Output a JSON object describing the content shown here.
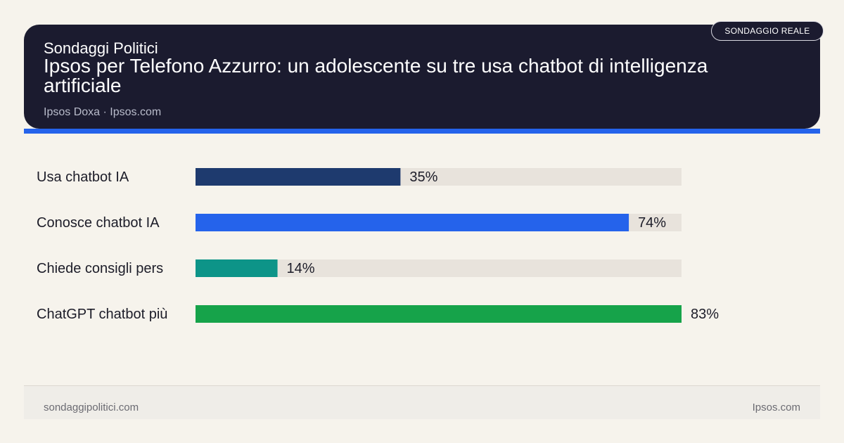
{
  "header": {
    "brand": "Sondaggi Politici",
    "title": "Ipsos per Telefono Azzurro: un adolescente su tre usa chatbot di intelligenza artificiale",
    "source": "Ipsos Doxa · Ipsos.com",
    "badge": "SONDAGGIO REALE"
  },
  "chart_data": {
    "type": "bar",
    "orientation": "horizontal",
    "categories": [
      "Usa chatbot IA",
      "Conosce chatbot IA",
      "Chiede consigli pers",
      "ChatGPT chatbot più"
    ],
    "values": [
      35,
      74,
      14,
      83
    ],
    "value_labels": [
      "35%",
      "74%",
      "14%",
      "83%"
    ],
    "unit": "%",
    "xlim": [
      0,
      83
    ],
    "colors": [
      "#1e3a6e",
      "#2563eb",
      "#0d9488",
      "#16a34a"
    ],
    "track_color": "#e8e3dc",
    "grid": false
  },
  "footer": {
    "left": "sondaggipolitici.com",
    "right": "Ipsos.com"
  }
}
